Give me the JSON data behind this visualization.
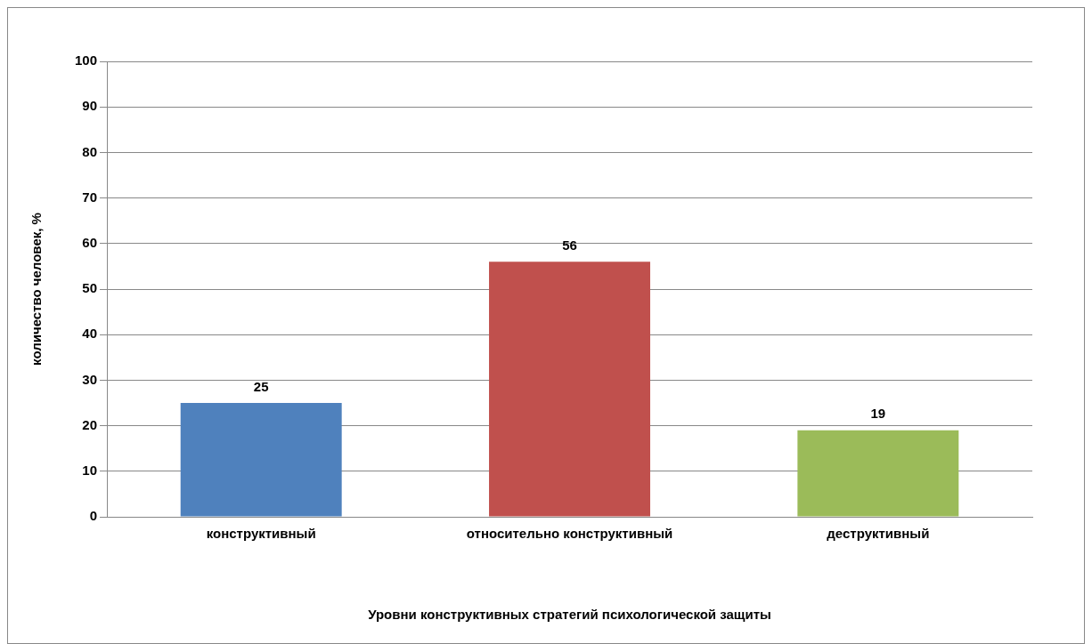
{
  "chart_data": {
    "type": "bar",
    "xlabel": "Уровни конструктивных стратегий психологической защиты",
    "ylabel": "количество человек, %",
    "categories": [
      "конструктивный",
      "относительно конструктивный",
      "деструктивный"
    ],
    "values": [
      25,
      56,
      19
    ],
    "colors": [
      "#4f81bd",
      "#c0504d",
      "#9bbb59"
    ],
    "ylim": [
      0,
      100
    ],
    "yticks": [
      0,
      10,
      20,
      30,
      40,
      50,
      60,
      70,
      80,
      90,
      100
    ],
    "grid": "y",
    "data_labels": true
  }
}
